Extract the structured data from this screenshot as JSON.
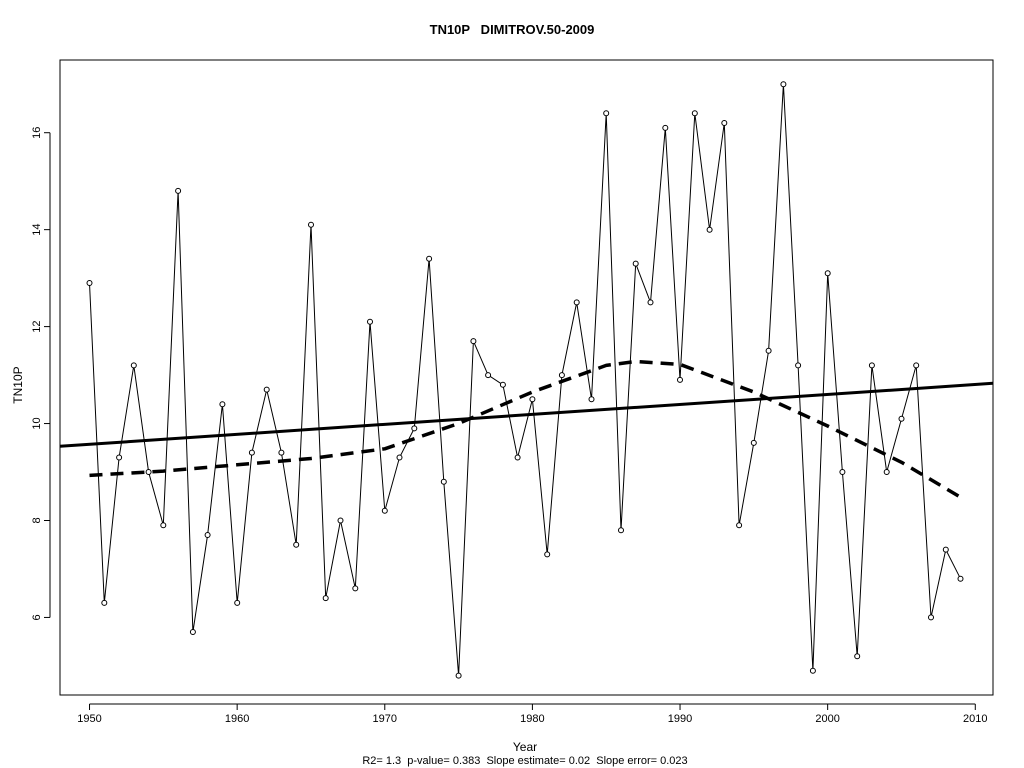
{
  "chart_data": {
    "type": "line",
    "title": "TN10P   DIMITROV.50-2009",
    "xlabel": "Year",
    "ylabel": "TN10P",
    "footer": "R2= 1.3  p-value= 0.383  Slope estimate= 0.02  Slope error= 0.023",
    "xlim": [
      1948,
      2011.2
    ],
    "ylim": [
      4.4,
      17.5
    ],
    "xticks": [
      "1950",
      "1960",
      "1970",
      "1980",
      "1990",
      "2000",
      "2010"
    ],
    "yticks": [
      "6",
      "8",
      "10",
      "12",
      "14",
      "16"
    ],
    "grid": false,
    "series": [
      {
        "style": "solid-thin-with-circles",
        "x": [
          1950,
          1951,
          1952,
          1953,
          1954,
          1955,
          1956,
          1957,
          1958,
          1959,
          1960,
          1961,
          1962,
          1963,
          1964,
          1965,
          1966,
          1967,
          1968,
          1969,
          1970,
          1971,
          1972,
          1973,
          1974,
          1975,
          1976,
          1977,
          1978,
          1979,
          1980,
          1981,
          1982,
          1983,
          1984,
          1985,
          1986,
          1987,
          1988,
          1989,
          1990,
          1991,
          1992,
          1993,
          1994,
          1995,
          1996,
          1997,
          1998,
          1999,
          2000,
          2001,
          2002,
          2003,
          2004,
          2005,
          2006,
          2007,
          2008,
          2009
        ],
        "y": [
          12.9,
          6.3,
          9.3,
          11.2,
          9.0,
          7.9,
          14.8,
          5.7,
          7.7,
          10.4,
          6.3,
          9.4,
          10.7,
          9.4,
          7.5,
          14.1,
          6.4,
          8.0,
          6.6,
          12.1,
          8.2,
          9.3,
          9.9,
          13.4,
          8.8,
          4.8,
          11.7,
          11.0,
          10.8,
          9.3,
          10.5,
          7.3,
          11.0,
          12.5,
          10.5,
          16.4,
          7.8,
          13.3,
          12.5,
          16.1,
          10.9,
          16.4,
          14.0,
          16.2,
          7.9,
          9.6,
          11.5,
          17.0,
          11.2,
          4.9,
          13.1,
          9.0,
          5.2,
          11.2,
          9.0,
          10.1,
          11.2,
          6.0,
          7.4,
          6.8
        ]
      },
      {
        "style": "linear-trend",
        "x": [
          1948,
          2011.2
        ],
        "y": [
          9.53,
          10.83
        ]
      },
      {
        "style": "lowess-dashed",
        "x": [
          1950,
          1955,
          1960,
          1965,
          1970,
          1975,
          1980,
          1985,
          1987,
          1990,
          1995,
          2000,
          2005,
          2009
        ],
        "y": [
          8.93,
          9.02,
          9.15,
          9.28,
          9.48,
          10.0,
          10.65,
          11.2,
          11.28,
          11.22,
          10.65,
          9.95,
          9.2,
          8.48
        ]
      }
    ]
  }
}
